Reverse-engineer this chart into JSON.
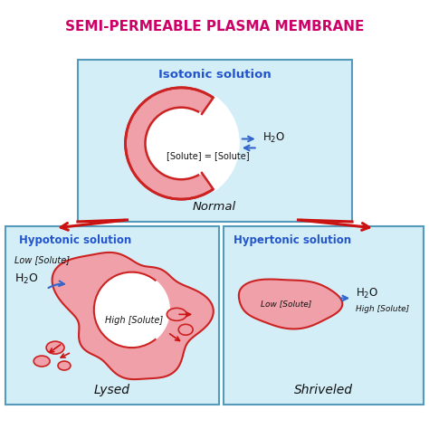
{
  "title": "SEMI-PERMEABLE PLASMA MEMBRANE",
  "title_color": "#cc0066",
  "bg_color": "#ffffff",
  "box_fill": "#d4eef8",
  "box_edge": "#5599bb",
  "cell_fill": "#f0a0a8",
  "cell_edge": "#cc2222",
  "arrow_blue": "#3366cc",
  "arrow_red": "#cc1111",
  "text_blue": "#2255cc",
  "text_dark": "#111111",
  "isotonic_label": "Isotonic solution",
  "hypotonic_label": "Hypotonic solution",
  "hypertonic_label": "Hypertonic solution",
  "normal_label": "Normal",
  "lysed_label": "Lysed",
  "shriveled_label": "Shriveled",
  "low_solute": "Low [Solute]",
  "high_solute": "High [Solute]",
  "solute_eq": "[Solute] = [Solute]",
  "h2o": "H$_2$O"
}
